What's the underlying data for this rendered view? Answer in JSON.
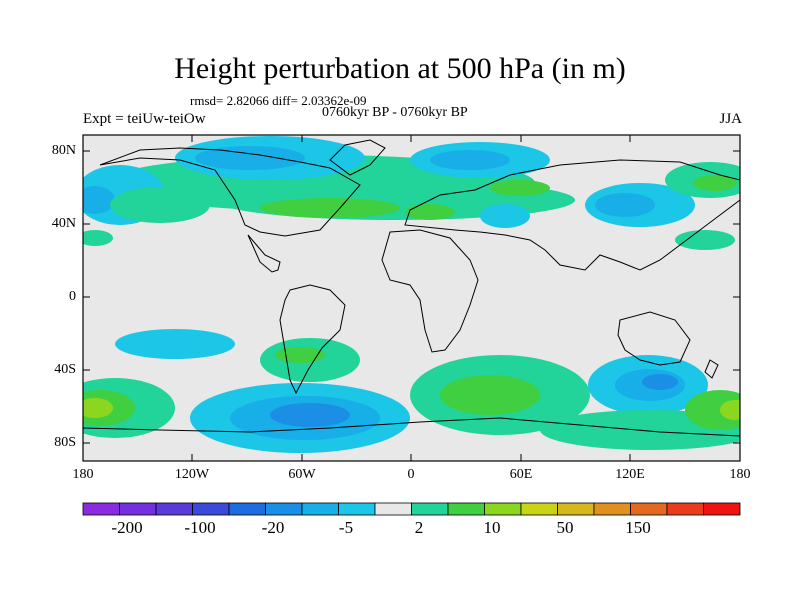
{
  "title": "Height perturbation at 500 hPa (in m)",
  "stats": "rmsd= 2.82066  diff= 2.03362e-09",
  "period": "0760kyr BP - 0760kyr BP",
  "expt": "Expt = teiUw-teiOw",
  "season": "JJA",
  "lat_labels": [
    "80N",
    "40N",
    "0",
    "40S",
    "80S"
  ],
  "lon_labels": [
    "180",
    "120W",
    "60W",
    "0",
    "60E",
    "120E",
    "180"
  ],
  "colorbar": {
    "colors": [
      "#8a2be2",
      "#7430e0",
      "#5a3ad8",
      "#3a4bdc",
      "#1f6ce0",
      "#1b8ee6",
      "#18aee8",
      "#1cc6e6",
      "#e8e8e8",
      "#22d39a",
      "#40cf40",
      "#8cd620",
      "#c8d418",
      "#d6b81e",
      "#e09020",
      "#e46820",
      "#e83c1c",
      "#ee1414"
    ],
    "labels": [
      "-200",
      "-100",
      "-20",
      "-5",
      "2",
      "10",
      "50",
      "150"
    ]
  }
}
